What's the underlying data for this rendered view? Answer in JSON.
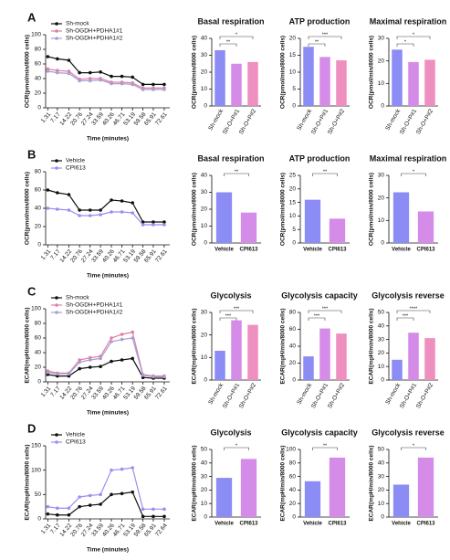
{
  "chart_data": [
    {
      "type": "line",
      "panel": "A",
      "ylabel": "OCR(pmol/min/8000 cells)",
      "xlabel": "Time (minutes)",
      "x": [
        1.31,
        7.17,
        14.22,
        20.76,
        27.24,
        33.59,
        40.26,
        46.71,
        53.19,
        59.58,
        65.91,
        72.61
      ],
      "xticks": [
        1.31,
        7.17,
        14.22,
        20.76,
        27.24,
        33.59,
        40.26,
        46.71,
        53.19,
        59.58,
        65.91,
        72.61
      ],
      "xlim": [
        0,
        76
      ],
      "ylim": [
        0,
        100
      ],
      "yticks": [
        0,
        20,
        40,
        60,
        80,
        100
      ],
      "series": [
        {
          "name": "Sh-mock",
          "color": "#111111",
          "values": [
            70,
            67,
            65,
            48,
            48,
            49,
            43,
            43,
            42,
            32,
            32,
            32
          ]
        },
        {
          "name": "Sh-OGDH+PDHA1#1",
          "color": "#e07fa6",
          "values": [
            53,
            51,
            50,
            39,
            40,
            40,
            35,
            35,
            34,
            27,
            27,
            27
          ]
        },
        {
          "name": "Sh-OGDH+PDHA1#2",
          "color": "#a79fd0",
          "values": [
            50,
            48,
            47,
            37,
            37,
            38,
            33,
            33,
            32,
            25,
            25,
            25
          ]
        }
      ]
    },
    {
      "type": "bar",
      "title": "Basal respiration",
      "ylabel": "OCR(pmol/min/8000 cells)",
      "categories": [
        "Sh-mock",
        "Sh-O+P#1",
        "Sh-O+P#2"
      ],
      "values": [
        33,
        25,
        26
      ],
      "colors": [
        "#8c8cf5",
        "#d58be8",
        "#ef8fbf"
      ],
      "ylim": [
        0,
        40
      ],
      "yticks": [
        0,
        10,
        20,
        30,
        40
      ],
      "annotations": [
        "**",
        "*"
      ]
    },
    {
      "type": "bar",
      "title": "ATP production",
      "ylabel": "OCR(pmol/min/8000 cells)",
      "categories": [
        "Sh-mock",
        "Sh-O+P#1",
        "Sh-O+P#2"
      ],
      "values": [
        17.5,
        14.5,
        13.5
      ],
      "colors": [
        "#8c8cf5",
        "#d58be8",
        "#ef8fbf"
      ],
      "ylim": [
        0,
        20
      ],
      "yticks": [
        0,
        5,
        10,
        15,
        20
      ],
      "annotations": [
        "**",
        "***"
      ]
    },
    {
      "type": "bar",
      "title": "Maximal respiration",
      "ylabel": "OCR(pmol/min/8000 cells)",
      "categories": [
        "Sh-mock",
        "Sh-O+P#1",
        "Sh-O+P#2"
      ],
      "values": [
        25,
        19.5,
        20.5
      ],
      "colors": [
        "#8c8cf5",
        "#d58be8",
        "#ef8fbf"
      ],
      "ylim": [
        0,
        30
      ],
      "yticks": [
        0,
        10,
        20,
        30
      ],
      "annotations": [
        "*",
        "*"
      ]
    },
    {
      "type": "line",
      "panel": "B",
      "ylabel": "OCR(pmol/min/8000 cells)",
      "xlabel": "Time (minutes)",
      "x": [
        1.31,
        7.17,
        14.22,
        20.76,
        27.24,
        33.59,
        40.26,
        46.71,
        53.19,
        59.58,
        65.91,
        72.61
      ],
      "xticks": [
        1.31,
        7.17,
        14.22,
        20.76,
        27.24,
        33.59,
        40.26,
        46.71,
        53.19,
        59.58,
        65.91,
        72.61
      ],
      "xlim": [
        0,
        76
      ],
      "ylim": [
        0,
        80
      ],
      "yticks": [
        0,
        20,
        40,
        60,
        80
      ],
      "series": [
        {
          "name": "Vehicle",
          "color": "#111111",
          "values": [
            60,
            57,
            55,
            38,
            38,
            38,
            49,
            48,
            46,
            25,
            25,
            25
          ]
        },
        {
          "name": "CPI613",
          "color": "#9b8ef0",
          "values": [
            40,
            39,
            38,
            32,
            32,
            33,
            36,
            36,
            35,
            22,
            22,
            22
          ]
        }
      ]
    },
    {
      "type": "bar",
      "title": "Basal respiration",
      "ylabel": "OCR(pmol/min/8000 cells)",
      "categories": [
        "Vehicle",
        "CPI613"
      ],
      "values": [
        30,
        18
      ],
      "colors": [
        "#8c8cf5",
        "#d58be8"
      ],
      "ylim": [
        0,
        40
      ],
      "yticks": [
        0,
        10,
        20,
        30,
        40
      ],
      "annotations": [
        "**"
      ]
    },
    {
      "type": "bar",
      "title": "ATP production",
      "ylabel": "OCR(pmol/min/8000 cells)",
      "categories": [
        "Vehicle",
        "CPI613"
      ],
      "values": [
        16,
        9
      ],
      "colors": [
        "#8c8cf5",
        "#d58be8"
      ],
      "ylim": [
        0,
        25
      ],
      "yticks": [
        0,
        5,
        10,
        15,
        20,
        25
      ],
      "annotations": [
        "**"
      ]
    },
    {
      "type": "bar",
      "title": "Maximal respiration",
      "ylabel": "OCR(pmol/min/8000 cells)",
      "categories": [
        "Vehicle",
        "CPI613"
      ],
      "values": [
        22.5,
        14
      ],
      "colors": [
        "#8c8cf5",
        "#d58be8"
      ],
      "ylim": [
        0,
        30
      ],
      "yticks": [
        0,
        10,
        20,
        30
      ],
      "annotations": [
        "*"
      ]
    },
    {
      "type": "line",
      "panel": "C",
      "ylabel": "ECAR(mpH/min/8000 cells)",
      "xlabel": "Time (minutes)",
      "x": [
        1.31,
        7.17,
        14.22,
        20.76,
        27.24,
        33.59,
        40.26,
        46.71,
        53.19,
        59.58,
        65.91,
        72.61
      ],
      "xticks": [
        1.31,
        7.17,
        14.22,
        20.76,
        27.24,
        33.59,
        40.26,
        46.71,
        53.19,
        59.58,
        65.91,
        72.61
      ],
      "xlim": [
        0,
        76
      ],
      "ylim": [
        0,
        100
      ],
      "yticks": [
        0,
        20,
        40,
        60,
        80,
        100
      ],
      "series": [
        {
          "name": "Sh-mock",
          "color": "#111111",
          "values": [
            10,
            8,
            8,
            18,
            20,
            21,
            28,
            30,
            32,
            6,
            5,
            5
          ]
        },
        {
          "name": "Sh-OGDH+PDHA1#1",
          "color": "#e07fa6",
          "values": [
            15,
            12,
            12,
            30,
            33,
            35,
            60,
            65,
            68,
            10,
            8,
            8
          ]
        },
        {
          "name": "Sh-OGDH+PDHA1#2",
          "color": "#a79fd0",
          "values": [
            13,
            11,
            11,
            27,
            30,
            32,
            55,
            58,
            60,
            9,
            7,
            7
          ]
        }
      ]
    },
    {
      "type": "bar",
      "title": "Glycolysis",
      "ylabel": "ECAR(mpH/min/8000 cells)",
      "categories": [
        "Sh-mock",
        "Sh-O+P#1",
        "Sh-O+P#2"
      ],
      "values": [
        13,
        26.5,
        24.5
      ],
      "colors": [
        "#8c8cf5",
        "#d58be8",
        "#ef8fbf"
      ],
      "ylim": [
        0,
        30
      ],
      "yticks": [
        0,
        10,
        20,
        30
      ],
      "annotations": [
        "***",
        "***"
      ]
    },
    {
      "type": "bar",
      "title": "Glycolysis capacity",
      "ylabel": "ECAR(mpH/min/8000 cells)",
      "categories": [
        "Sh-mock",
        "Sh-O+P#1",
        "Sh-O+P#2"
      ],
      "values": [
        28,
        61,
        55
      ],
      "colors": [
        "#8c8cf5",
        "#d58be8",
        "#ef8fbf"
      ],
      "ylim": [
        0,
        80
      ],
      "yticks": [
        0,
        20,
        40,
        60,
        80
      ],
      "annotations": [
        "***",
        "***"
      ]
    },
    {
      "type": "bar",
      "title": "Glycolysis reverse",
      "ylabel": "ECAR(mpH/min/8000 cells)",
      "categories": [
        "Sh-mock",
        "Sh-O+P#1",
        "Sh-O+P#2"
      ],
      "values": [
        15,
        35,
        31
      ],
      "colors": [
        "#8c8cf5",
        "#d58be8",
        "#ef8fbf"
      ],
      "ylim": [
        0,
        50
      ],
      "yticks": [
        0,
        10,
        20,
        30,
        40,
        50
      ],
      "annotations": [
        "***",
        "****"
      ]
    },
    {
      "type": "line",
      "panel": "D",
      "ylabel": "ECAR(mpH/min/8000 cells)",
      "xlabel": "Time (minutes)",
      "x": [
        1.31,
        7.17,
        14.22,
        20.76,
        27.24,
        33.59,
        40.26,
        46.71,
        53.19,
        59.58,
        65.91,
        72.64
      ],
      "xticks": [
        1.31,
        7.17,
        14.22,
        20.76,
        27.24,
        33.59,
        40.26,
        46.71,
        53.19,
        59.58,
        65.91,
        72.64
      ],
      "xlim": [
        0,
        76
      ],
      "ylim": [
        0,
        150
      ],
      "yticks": [
        0,
        50,
        100,
        150
      ],
      "series": [
        {
          "name": "Vehicle",
          "color": "#111111",
          "values": [
            10,
            8,
            8,
            25,
            28,
            30,
            50,
            52,
            55,
            5,
            5,
            5
          ]
        },
        {
          "name": "CPI613",
          "color": "#9b8ef0",
          "values": [
            25,
            22,
            22,
            45,
            48,
            50,
            100,
            102,
            105,
            20,
            20,
            20
          ]
        }
      ]
    },
    {
      "type": "bar",
      "title": "Glycolysis",
      "ylabel": "ECAR(mpH/min/8000 cells)",
      "categories": [
        "Vehicle",
        "CPI613"
      ],
      "values": [
        29,
        43
      ],
      "colors": [
        "#8c8cf5",
        "#d58be8"
      ],
      "ylim": [
        0,
        50
      ],
      "yticks": [
        0,
        10,
        20,
        30,
        40,
        50
      ],
      "annotations": [
        "*"
      ]
    },
    {
      "type": "bar",
      "title": "Glycolysis capacity",
      "ylabel": "ECAR(mpH/min/8000 cells)",
      "categories": [
        "Vehicle",
        "CPI613"
      ],
      "values": [
        53,
        88
      ],
      "colors": [
        "#8c8cf5",
        "#d58be8"
      ],
      "ylim": [
        0,
        100
      ],
      "yticks": [
        0,
        20,
        40,
        60,
        80,
        100
      ],
      "annotations": [
        "**"
      ]
    },
    {
      "type": "bar",
      "title": "Glycolysis reverse",
      "ylabel": "ECAR(mpH/min/8000 cells)",
      "categories": [
        "Vehicle",
        "CPI613"
      ],
      "values": [
        24,
        44
      ],
      "colors": [
        "#8c8cf5",
        "#d58be8"
      ],
      "ylim": [
        0,
        50
      ],
      "yticks": [
        0,
        10,
        20,
        30,
        40,
        50
      ],
      "annotations": [
        "*"
      ]
    }
  ]
}
